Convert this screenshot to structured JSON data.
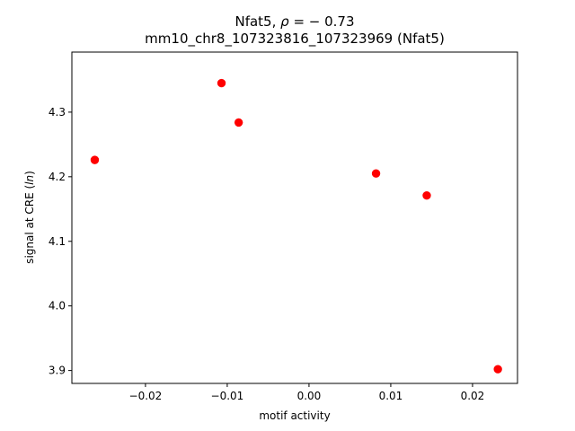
{
  "chart_data": {
    "type": "scatter",
    "title_line1_prefix": "Nfat5, ",
    "title_line1_rho": "ρ",
    "title_line1_suffix": " = − 0.73",
    "title_line2": "mm10_chr8_107323816_107323969 (Nfat5)",
    "xlabel": "motif activity",
    "ylabel_prefix": "signal at CRE (",
    "ylabel_italic": "ln",
    "ylabel_suffix": ")",
    "xlim": [
      -0.029,
      0.0255
    ],
    "ylim": [
      3.88,
      4.393
    ],
    "xticks": [
      -0.02,
      -0.01,
      0.0,
      0.01,
      0.02
    ],
    "xtick_labels": [
      "−0.02",
      "−0.01",
      "0.00",
      "0.01",
      "0.02"
    ],
    "yticks": [
      3.9,
      4.0,
      4.1,
      4.2,
      4.3
    ],
    "ytick_labels": [
      "3.9",
      "4.0",
      "4.1",
      "4.2",
      "4.3"
    ],
    "marker_color": "#ff0000",
    "points": [
      {
        "x": -0.0262,
        "y": 4.226
      },
      {
        "x": -0.0107,
        "y": 4.345
      },
      {
        "x": -0.0086,
        "y": 4.284
      },
      {
        "x": 0.0082,
        "y": 4.205
      },
      {
        "x": 0.0144,
        "y": 4.171
      },
      {
        "x": 0.0231,
        "y": 3.902
      }
    ]
  }
}
